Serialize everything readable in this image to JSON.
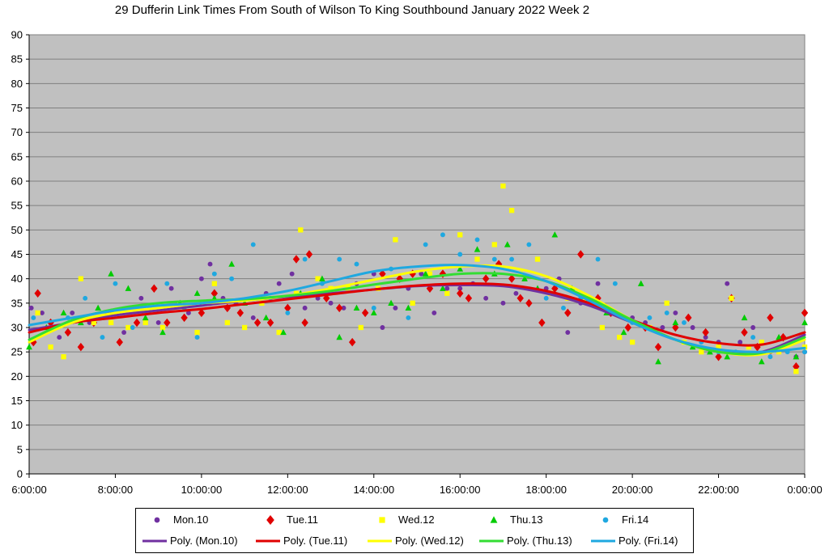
{
  "chart_data": {
    "type": "scatter",
    "title": "29 Dufferin Link Times From South of Wilson To King Southbound January 2022  Week 2",
    "xlabel": "",
    "ylabel": "",
    "xlim": [
      6,
      24
    ],
    "ylim": [
      0,
      90
    ],
    "yticks": [
      0,
      5,
      10,
      15,
      20,
      25,
      30,
      35,
      40,
      45,
      50,
      55,
      60,
      65,
      70,
      75,
      80,
      85,
      90
    ],
    "xtick_labels": [
      "6:00:00",
      "8:00:00",
      "10:00:00",
      "12:00:00",
      "14:00:00",
      "16:00:00",
      "18:00:00",
      "20:00:00",
      "22:00:00",
      "0:00:00"
    ],
    "xtick_hours": [
      6,
      8,
      10,
      12,
      14,
      16,
      18,
      20,
      22,
      24
    ],
    "grid": true,
    "legend_position": "bottom",
    "series": [
      {
        "name": "Mon.10",
        "marker": "circle",
        "color": "#7030a0",
        "points": [
          [
            6.05,
            34
          ],
          [
            6.3,
            33
          ],
          [
            6.7,
            28
          ],
          [
            7.0,
            33
          ],
          [
            7.4,
            31
          ],
          [
            7.8,
            33
          ],
          [
            8.2,
            29
          ],
          [
            8.6,
            36
          ],
          [
            9.0,
            31
          ],
          [
            9.3,
            38
          ],
          [
            9.7,
            33
          ],
          [
            10.0,
            40
          ],
          [
            10.2,
            43
          ],
          [
            10.5,
            36
          ],
          [
            10.8,
            35
          ],
          [
            11.2,
            32
          ],
          [
            11.5,
            37
          ],
          [
            11.8,
            39
          ],
          [
            12.1,
            41
          ],
          [
            12.4,
            34
          ],
          [
            12.7,
            36
          ],
          [
            13.0,
            35
          ],
          [
            13.3,
            34
          ],
          [
            13.6,
            39
          ],
          [
            14.0,
            41
          ],
          [
            14.2,
            30
          ],
          [
            14.5,
            34
          ],
          [
            14.8,
            38
          ],
          [
            15.1,
            41
          ],
          [
            15.4,
            33
          ],
          [
            15.7,
            38
          ],
          [
            16.0,
            38
          ],
          [
            16.3,
            39
          ],
          [
            16.6,
            36
          ],
          [
            17.0,
            35
          ],
          [
            17.3,
            37
          ],
          [
            17.6,
            35
          ],
          [
            18.0,
            38
          ],
          [
            18.3,
            40
          ],
          [
            18.5,
            29
          ],
          [
            18.8,
            35
          ],
          [
            19.2,
            39
          ],
          [
            19.6,
            33
          ],
          [
            20.0,
            32
          ],
          [
            20.3,
            31
          ],
          [
            20.7,
            30
          ],
          [
            21.0,
            33
          ],
          [
            21.4,
            30
          ],
          [
            21.7,
            28
          ],
          [
            22.0,
            27
          ],
          [
            22.2,
            39
          ],
          [
            22.5,
            27
          ],
          [
            22.8,
            30
          ],
          [
            23.2,
            25
          ],
          [
            23.5,
            28
          ],
          [
            23.8,
            24
          ],
          [
            24.0,
            25
          ]
        ]
      },
      {
        "name": "Tue.11",
        "marker": "diamond",
        "color": "#e00000",
        "points": [
          [
            6.1,
            27
          ],
          [
            6.2,
            37
          ],
          [
            6.5,
            31
          ],
          [
            6.9,
            29
          ],
          [
            7.2,
            26
          ],
          [
            7.5,
            31
          ],
          [
            7.9,
            33
          ],
          [
            8.1,
            27
          ],
          [
            8.5,
            31
          ],
          [
            8.9,
            38
          ],
          [
            9.2,
            31
          ],
          [
            9.6,
            32
          ],
          [
            10.0,
            33
          ],
          [
            10.3,
            37
          ],
          [
            10.6,
            34
          ],
          [
            10.9,
            33
          ],
          [
            11.3,
            31
          ],
          [
            11.6,
            31
          ],
          [
            12.0,
            34
          ],
          [
            12.2,
            44
          ],
          [
            12.4,
            31
          ],
          [
            12.5,
            45
          ],
          [
            12.9,
            36
          ],
          [
            13.2,
            34
          ],
          [
            13.5,
            27
          ],
          [
            13.8,
            33
          ],
          [
            14.2,
            41
          ],
          [
            14.6,
            40
          ],
          [
            14.9,
            41
          ],
          [
            15.3,
            38
          ],
          [
            15.6,
            41
          ],
          [
            16.0,
            37
          ],
          [
            16.2,
            36
          ],
          [
            16.6,
            40
          ],
          [
            16.9,
            43
          ],
          [
            17.2,
            40
          ],
          [
            17.4,
            36
          ],
          [
            17.6,
            35
          ],
          [
            17.9,
            31
          ],
          [
            18.2,
            38
          ],
          [
            18.5,
            33
          ],
          [
            18.8,
            45
          ],
          [
            19.2,
            36
          ],
          [
            19.5,
            33
          ],
          [
            19.9,
            30
          ],
          [
            20.3,
            30
          ],
          [
            20.6,
            26
          ],
          [
            21.0,
            30
          ],
          [
            21.3,
            32
          ],
          [
            21.7,
            29
          ],
          [
            22.0,
            24
          ],
          [
            22.3,
            36
          ],
          [
            22.6,
            29
          ],
          [
            22.9,
            26
          ],
          [
            23.2,
            32
          ],
          [
            23.5,
            28
          ],
          [
            23.8,
            22
          ],
          [
            24.0,
            33
          ]
        ]
      },
      {
        "name": "Wed.12",
        "marker": "square",
        "color": "#ffff00",
        "points": [
          [
            6.2,
            33
          ],
          [
            6.5,
            26
          ],
          [
            6.8,
            24
          ],
          [
            7.2,
            40
          ],
          [
            7.5,
            31
          ],
          [
            7.9,
            31
          ],
          [
            8.3,
            30
          ],
          [
            8.7,
            31
          ],
          [
            9.1,
            30
          ],
          [
            9.5,
            35
          ],
          [
            9.9,
            29
          ],
          [
            10.3,
            39
          ],
          [
            10.6,
            31
          ],
          [
            11.0,
            30
          ],
          [
            11.4,
            35
          ],
          [
            11.8,
            29
          ],
          [
            12.2,
            37
          ],
          [
            12.3,
            50
          ],
          [
            12.7,
            40
          ],
          [
            13.0,
            38
          ],
          [
            13.4,
            38
          ],
          [
            13.7,
            30
          ],
          [
            14.1,
            38
          ],
          [
            14.5,
            48
          ],
          [
            14.9,
            35
          ],
          [
            15.3,
            41
          ],
          [
            15.7,
            37
          ],
          [
            16.0,
            49
          ],
          [
            16.4,
            44
          ],
          [
            16.8,
            47
          ],
          [
            17.0,
            59
          ],
          [
            17.2,
            54
          ],
          [
            17.4,
            41
          ],
          [
            17.8,
            44
          ],
          [
            18.1,
            37
          ],
          [
            18.5,
            36
          ],
          [
            18.9,
            36
          ],
          [
            19.3,
            30
          ],
          [
            19.7,
            28
          ],
          [
            20.0,
            27
          ],
          [
            20.4,
            30
          ],
          [
            20.8,
            35
          ],
          [
            21.2,
            27
          ],
          [
            21.6,
            25
          ],
          [
            22.0,
            26
          ],
          [
            22.3,
            36
          ],
          [
            22.7,
            26
          ],
          [
            23.0,
            27
          ],
          [
            23.4,
            25
          ],
          [
            23.8,
            21
          ],
          [
            24.0,
            26
          ]
        ]
      },
      {
        "name": "Thu.13",
        "marker": "triangle",
        "color": "#00cc00",
        "points": [
          [
            6.0,
            26
          ],
          [
            6.4,
            30
          ],
          [
            6.8,
            33
          ],
          [
            7.2,
            31
          ],
          [
            7.6,
            34
          ],
          [
            7.9,
            41
          ],
          [
            8.3,
            38
          ],
          [
            8.7,
            32
          ],
          [
            9.1,
            29
          ],
          [
            9.5,
            35
          ],
          [
            9.9,
            37
          ],
          [
            10.3,
            36
          ],
          [
            10.7,
            43
          ],
          [
            11.0,
            35
          ],
          [
            11.5,
            32
          ],
          [
            11.9,
            29
          ],
          [
            12.3,
            37
          ],
          [
            12.8,
            40
          ],
          [
            13.2,
            28
          ],
          [
            13.6,
            34
          ],
          [
            14.0,
            33
          ],
          [
            14.4,
            35
          ],
          [
            14.8,
            34
          ],
          [
            15.2,
            41
          ],
          [
            15.6,
            38
          ],
          [
            16.0,
            42
          ],
          [
            16.4,
            46
          ],
          [
            16.8,
            41
          ],
          [
            17.1,
            47
          ],
          [
            17.5,
            40
          ],
          [
            17.8,
            38
          ],
          [
            18.2,
            49
          ],
          [
            18.6,
            38
          ],
          [
            19.0,
            36
          ],
          [
            19.4,
            33
          ],
          [
            19.8,
            29
          ],
          [
            20.2,
            39
          ],
          [
            20.6,
            23
          ],
          [
            21.0,
            31
          ],
          [
            21.4,
            26
          ],
          [
            21.8,
            25
          ],
          [
            22.2,
            24
          ],
          [
            22.6,
            32
          ],
          [
            23.0,
            23
          ],
          [
            23.4,
            28
          ],
          [
            23.8,
            24
          ],
          [
            24.0,
            31
          ]
        ]
      },
      {
        "name": "Fri.14",
        "marker": "circle",
        "color": "#1fa8e0",
        "points": [
          [
            6.1,
            32
          ],
          [
            6.5,
            30
          ],
          [
            6.9,
            32
          ],
          [
            7.3,
            36
          ],
          [
            7.7,
            28
          ],
          [
            8.0,
            39
          ],
          [
            8.4,
            30
          ],
          [
            8.8,
            34
          ],
          [
            9.2,
            39
          ],
          [
            9.6,
            34
          ],
          [
            9.9,
            28
          ],
          [
            10.3,
            41
          ],
          [
            10.7,
            40
          ],
          [
            11.2,
            47
          ],
          [
            11.6,
            36
          ],
          [
            12.0,
            33
          ],
          [
            12.4,
            44
          ],
          [
            12.8,
            39
          ],
          [
            13.2,
            44
          ],
          [
            13.6,
            43
          ],
          [
            14.0,
            34
          ],
          [
            14.4,
            42
          ],
          [
            14.8,
            32
          ],
          [
            15.2,
            47
          ],
          [
            15.6,
            49
          ],
          [
            16.0,
            45
          ],
          [
            16.4,
            48
          ],
          [
            16.8,
            44
          ],
          [
            17.2,
            44
          ],
          [
            17.6,
            47
          ],
          [
            18.0,
            36
          ],
          [
            18.4,
            34
          ],
          [
            18.8,
            36
          ],
          [
            19.2,
            44
          ],
          [
            19.6,
            39
          ],
          [
            20.0,
            31
          ],
          [
            20.4,
            32
          ],
          [
            20.8,
            33
          ],
          [
            21.2,
            31
          ],
          [
            21.6,
            27
          ],
          [
            22.0,
            25
          ],
          [
            22.4,
            25
          ],
          [
            22.8,
            28
          ],
          [
            23.2,
            24
          ],
          [
            23.6,
            25
          ],
          [
            24.0,
            25
          ]
        ]
      }
    ],
    "trendlines": [
      {
        "name": "Poly. (Mon.10)",
        "color": "#7030a0",
        "x": [
          6,
          7,
          8,
          9,
          10,
          11,
          12,
          13,
          14,
          15,
          16,
          17,
          18,
          19,
          20,
          21,
          22,
          23,
          24
        ],
        "y": [
          29.5,
          31,
          32.5,
          33.5,
          34.5,
          35.5,
          36.3,
          37,
          37.8,
          38.5,
          38.7,
          38.5,
          37,
          34.5,
          31,
          27.5,
          25,
          25,
          28.5
        ]
      },
      {
        "name": "Poly. (Tue.11)",
        "color": "#e00000",
        "x": [
          6,
          7,
          8,
          9,
          10,
          11,
          12,
          13,
          14,
          15,
          16,
          17,
          18,
          19,
          20,
          21,
          22,
          23,
          24
        ],
        "y": [
          29,
          31,
          32,
          33,
          33.8,
          34.8,
          35.8,
          36.8,
          37.8,
          38.6,
          39,
          38.8,
          37.5,
          35,
          31.5,
          28.5,
          26.8,
          26.5,
          29
        ]
      },
      {
        "name": "Poly. (Wed.12)",
        "color": "#ffff00",
        "x": [
          6,
          7,
          8,
          9,
          10,
          11,
          12,
          13,
          14,
          15,
          16,
          17,
          18,
          19,
          20,
          21,
          22,
          23,
          24
        ],
        "y": [
          27,
          31,
          33,
          34,
          35,
          35.5,
          36.5,
          38,
          39.8,
          41.5,
          42.5,
          42.5,
          40.5,
          36.5,
          31.5,
          27.5,
          25,
          24.5,
          27.5
        ]
      },
      {
        "name": "Poly. (Thu.13)",
        "color": "#33dd33",
        "x": [
          6,
          7,
          8,
          9,
          10,
          11,
          12,
          13,
          14,
          15,
          16,
          17,
          18,
          19,
          20,
          21,
          22,
          23,
          24
        ],
        "y": [
          27.5,
          31.5,
          33.8,
          35,
          35.5,
          35.8,
          36.5,
          37.5,
          38.8,
          40,
          41,
          41,
          39.5,
          36,
          31.5,
          27.5,
          25,
          24.8,
          28
        ]
      },
      {
        "name": "Poly. (Fri.14)",
        "color": "#1fa8e0",
        "x": [
          6,
          7,
          8,
          9,
          10,
          11,
          12,
          13,
          14,
          15,
          16,
          17,
          18,
          19,
          20,
          21,
          22,
          23,
          24
        ],
        "y": [
          30.5,
          32,
          33.5,
          34.5,
          35,
          36,
          37.5,
          39.5,
          41.5,
          42.5,
          42.8,
          42,
          39.5,
          35.5,
          31,
          27.5,
          25.5,
          25,
          25.8
        ]
      }
    ]
  }
}
